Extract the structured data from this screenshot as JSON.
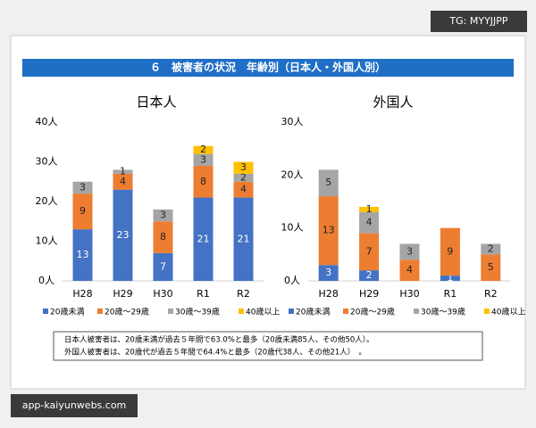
{
  "header": {
    "title": "６　被害者の状況　年齢別（日本人・外国人別）"
  },
  "watermarks": {
    "top": "TG: MYYJJPP",
    "bottom": "app-kaiyunwebs.com"
  },
  "notes": [
    "日本人被害者は、20歳未満が過去５年間で63.0%と最多（20歳未満85人、その他50人）。",
    "外国人被害者は、20歳代が過去５年間で64.4%と最多（20歳代38人、その他21人）　。"
  ],
  "chart_data": [
    {
      "type": "stacked_bar",
      "title": "日本人",
      "categories": [
        "H28",
        "H29",
        "H30",
        "R1",
        "R2"
      ],
      "series": [
        {
          "name": "20歳未満",
          "color": "#4472c4",
          "values": [
            13,
            23,
            7,
            21,
            21
          ]
        },
        {
          "name": "20歳～29歳",
          "color": "#ed7d31",
          "values": [
            9,
            4,
            8,
            8,
            4
          ]
        },
        {
          "name": "30歳～39歳",
          "color": "#a5a5a5",
          "values": [
            3,
            1,
            3,
            3,
            2
          ]
        },
        {
          "name": "40歳以上",
          "color": "#ffc000",
          "values": [
            0,
            0,
            0,
            2,
            3
          ]
        }
      ],
      "ylim": [
        0,
        40
      ],
      "yticks": [
        {
          "value": 0,
          "label": "0人"
        },
        {
          "value": 10,
          "label": "10人"
        },
        {
          "value": 20,
          "label": "20人"
        },
        {
          "value": 30,
          "label": "30人"
        },
        {
          "value": 40,
          "label": "40人"
        }
      ]
    },
    {
      "type": "stacked_bar",
      "title": "外国人",
      "categories": [
        "H28",
        "H29",
        "H30",
        "R1",
        "R2"
      ],
      "series": [
        {
          "name": "20歳未満",
          "color": "#4472c4",
          "values": [
            3,
            2,
            0,
            1,
            0
          ]
        },
        {
          "name": "20歳～29歳",
          "color": "#ed7d31",
          "values": [
            13,
            7,
            4,
            9,
            5
          ]
        },
        {
          "name": "30歳～39歳",
          "color": "#a5a5a5",
          "values": [
            5,
            4,
            3,
            0,
            2
          ]
        },
        {
          "name": "40歳以上",
          "color": "#ffc000",
          "values": [
            0,
            1,
            0,
            0,
            0
          ]
        }
      ],
      "ylim": [
        0,
        30
      ],
      "yticks": [
        {
          "value": 0,
          "label": "0人"
        },
        {
          "value": 10,
          "label": "10人"
        },
        {
          "value": 20,
          "label": "20人"
        },
        {
          "value": 30,
          "label": "30人"
        }
      ]
    }
  ]
}
